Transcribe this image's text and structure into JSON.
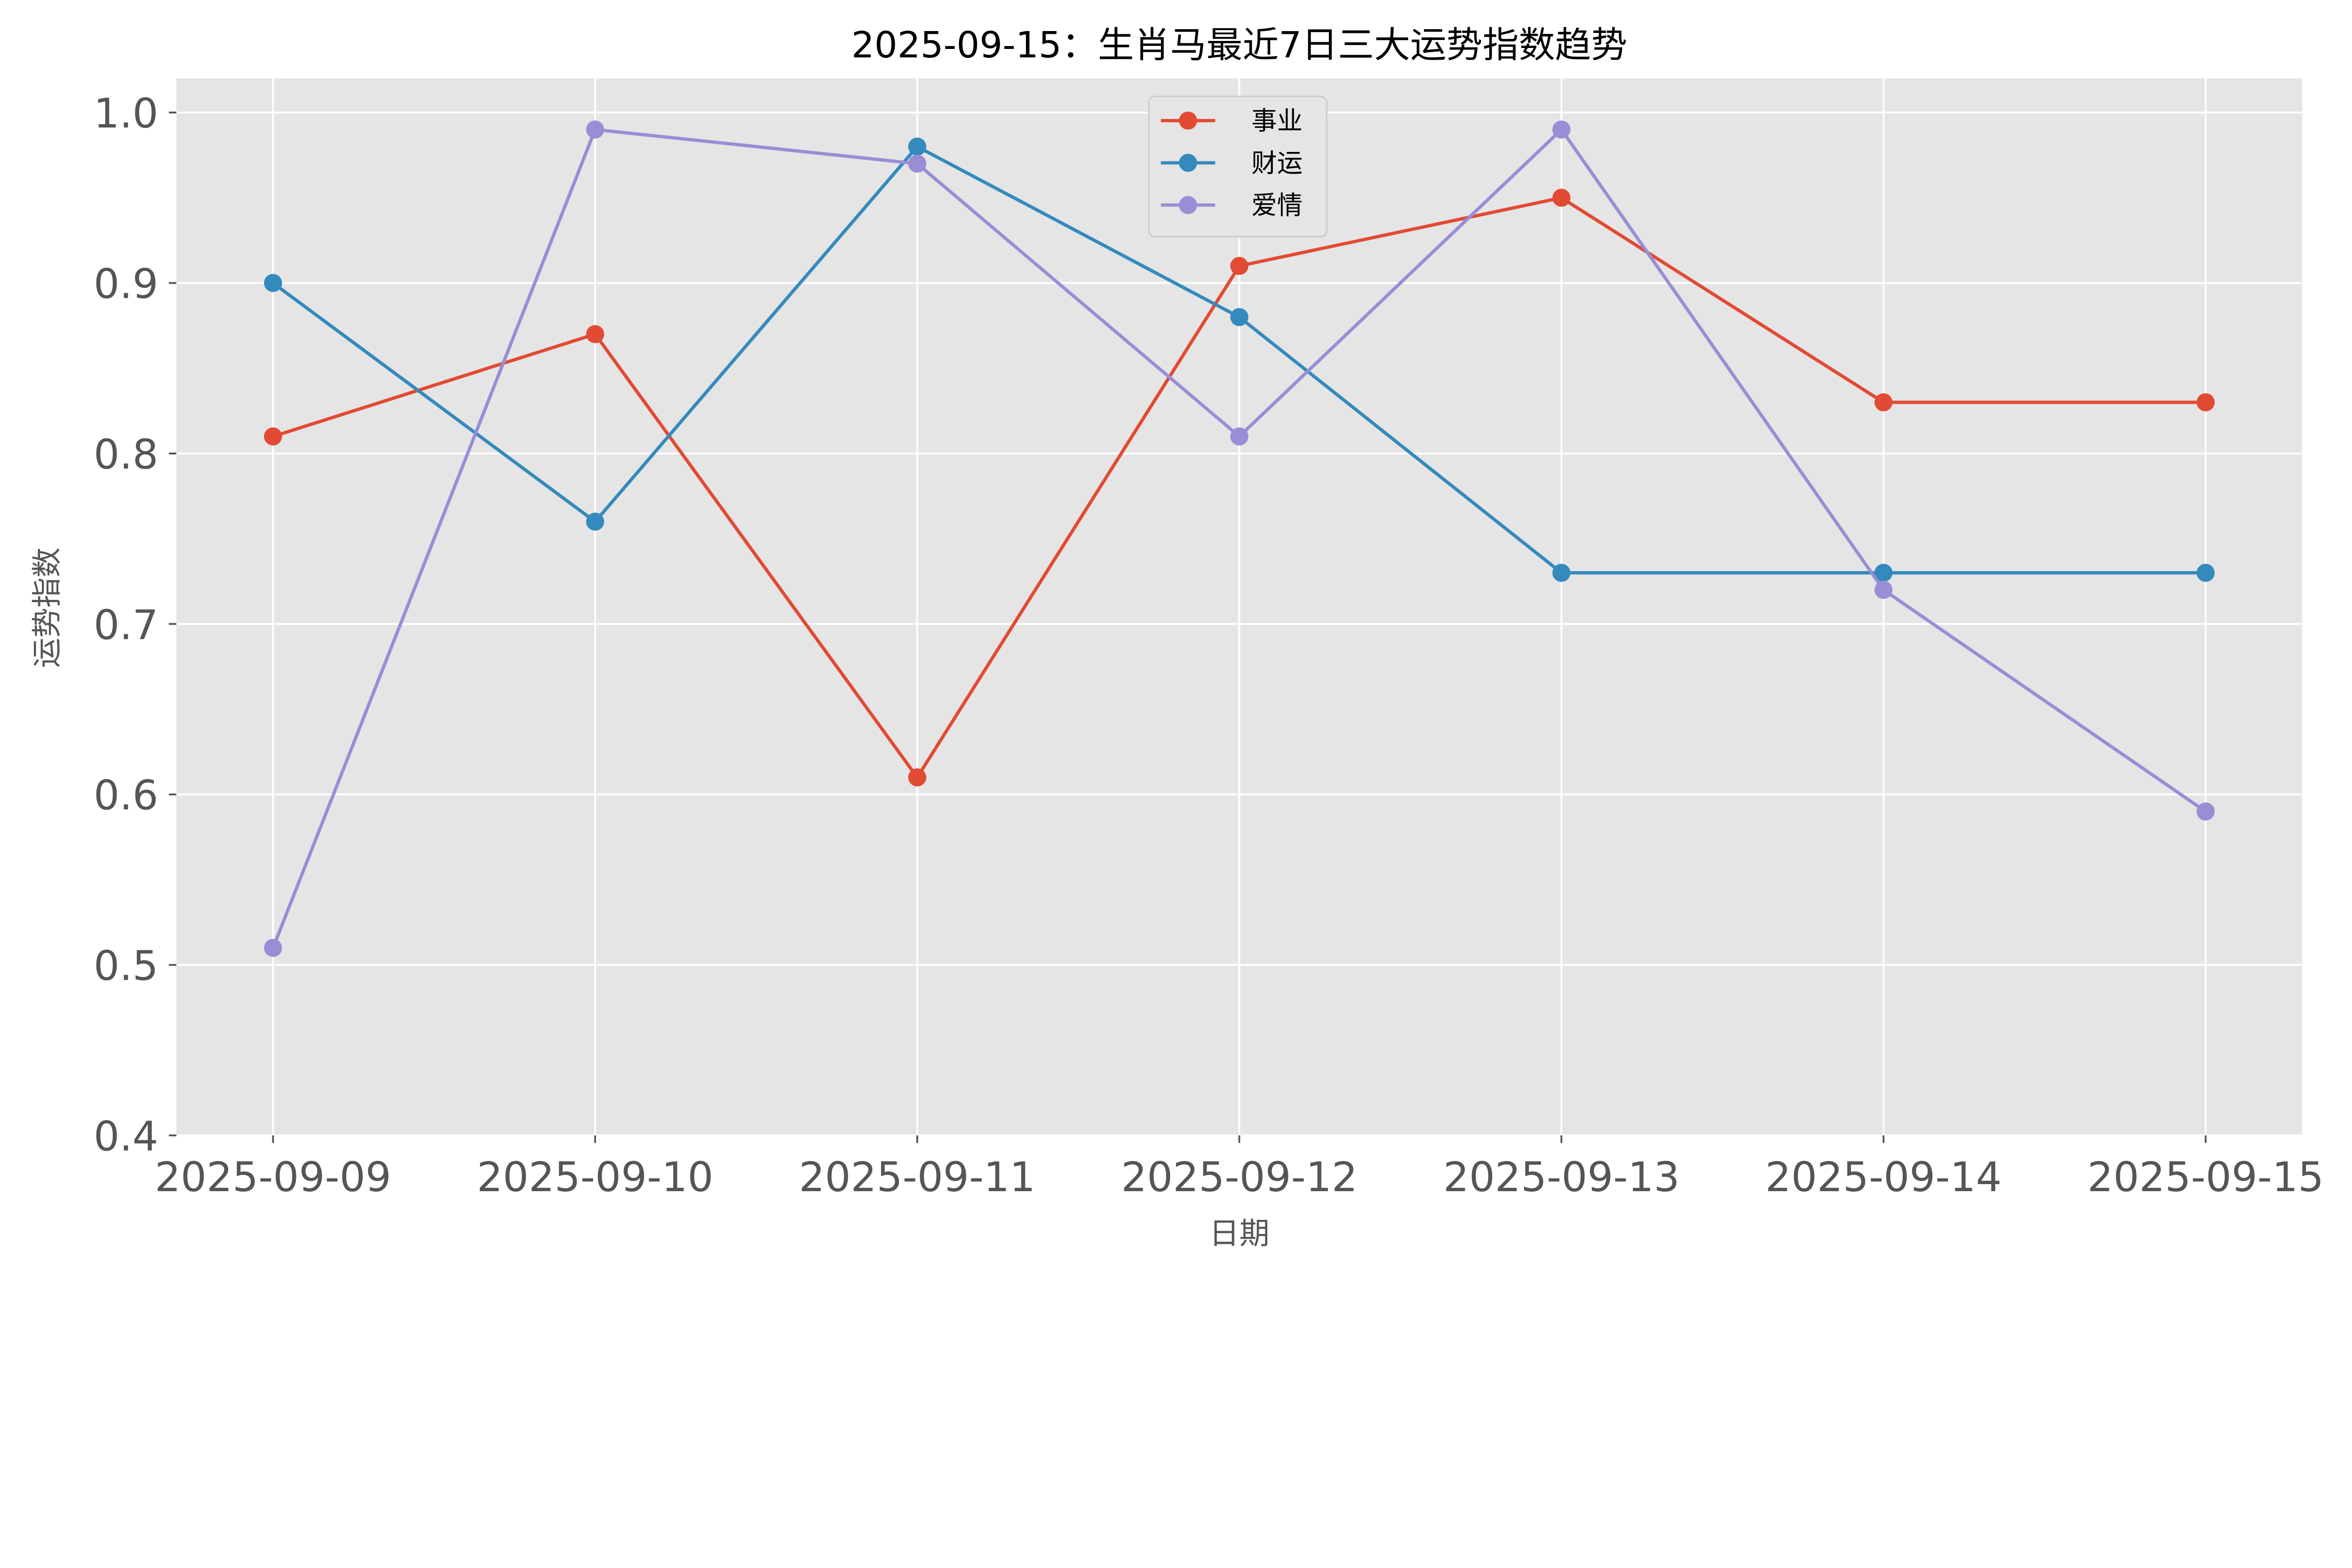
{
  "chart_data": {
    "type": "line",
    "title": "2025-09-15：生肖马最近7日三大运势指数趋势",
    "xlabel": "日期",
    "ylabel": "运势指数",
    "categories": [
      "2025-09-09",
      "2025-09-10",
      "2025-09-11",
      "2025-09-12",
      "2025-09-13",
      "2025-09-14",
      "2025-09-15"
    ],
    "ylim": [
      0.4,
      1.02
    ],
    "yticks": [
      "0.4",
      "0.5",
      "0.6",
      "0.7",
      "0.8",
      "0.9",
      "1.0"
    ],
    "grid": true,
    "legend_position": "top-center",
    "series": [
      {
        "name": "事业",
        "color": "#E24A33",
        "values": [
          0.81,
          0.87,
          0.61,
          0.91,
          0.95,
          0.83,
          0.83
        ]
      },
      {
        "name": "财运",
        "color": "#348ABD",
        "values": [
          0.9,
          0.76,
          0.98,
          0.88,
          0.73,
          0.73,
          0.73
        ]
      },
      {
        "name": "爱情",
        "color": "#988ED5",
        "values": [
          0.51,
          0.99,
          0.97,
          0.81,
          0.99,
          0.72,
          0.59
        ]
      }
    ]
  }
}
